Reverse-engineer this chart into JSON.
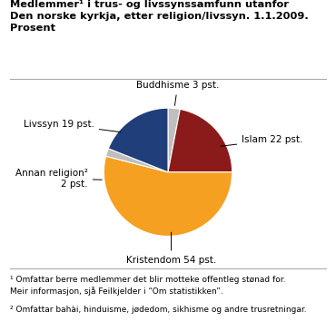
{
  "title_line1": "Medlemmer¹ i trus- og livssynssamfunn utanfor",
  "title_line2": "Den norske kyrkja, etter religion/livssyn. 1.1.2009.",
  "title_line3": "Prosent",
  "slices": [
    {
      "label": "Buddhisme 3 pst.",
      "value": 3,
      "color": "#C0BFBF"
    },
    {
      "label": "Islam 22 pst.",
      "value": 22,
      "color": "#8B1A1A"
    },
    {
      "label": "Kristendom 54 pst.",
      "value": 54,
      "color": "#F5A020"
    },
    {
      "label": "Annan religion²\n2 pst.",
      "value": 2,
      "color": "#BEBEBE"
    },
    {
      "label": "Livssyn 19 pst.",
      "value": 19,
      "color": "#1F3E7A"
    }
  ],
  "footnote1": "¹ Omfattar berre medlemmer det blir motteke offentleg stønad for.\nMeir informasjon, sjå Feilkjelder i “Om statistikken”.",
  "footnote2": "² Omfattar bahài, hinduisme, jødedom, sikhisme og andre trusretningar.",
  "background_color": "#ffffff",
  "start_angle": 90
}
